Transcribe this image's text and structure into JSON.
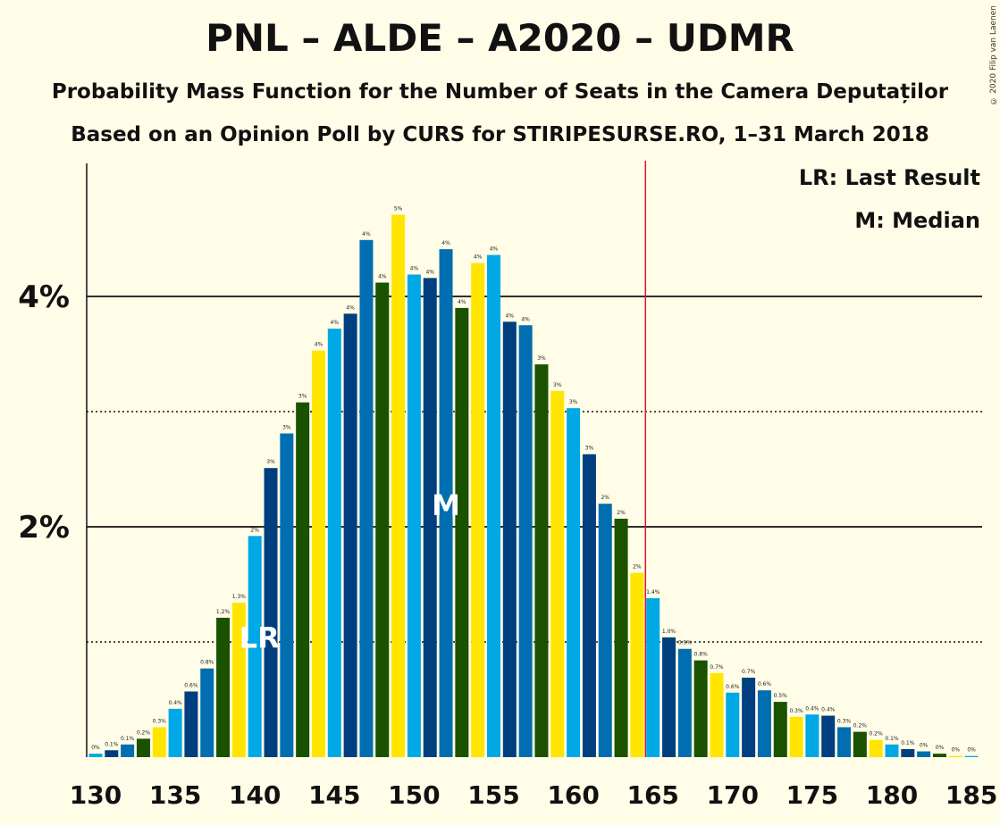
{
  "title": "PNL – ALDE – A2020 – UDMR",
  "subtitle_1": "Probability Mass Function for the Number of Seats in the Camera Deputaților",
  "subtitle_2": "Based on an Opinion Poll by CURS for STIRIPESURSE.RO, 1–31 March 2018",
  "copyright": "© 2020 Filip van Laenen",
  "legend": {
    "last_result": "LR: Last Result",
    "median": "M: Median"
  },
  "colors": {
    "background": "#FFFDE7",
    "bar_palette": [
      "#00A9E6",
      "#003F7F",
      "#006EB0",
      "#1A5200",
      "#FFE500"
    ],
    "last_result_line": "#E0112B"
  },
  "chart_data": {
    "type": "bar",
    "x": [
      130,
      131,
      132,
      133,
      134,
      135,
      136,
      137,
      138,
      139,
      140,
      141,
      142,
      143,
      144,
      145,
      146,
      147,
      148,
      149,
      150,
      151,
      152,
      153,
      154,
      155,
      156,
      157,
      158,
      159,
      160,
      161,
      162,
      163,
      164,
      165,
      166,
      167,
      168,
      169,
      170,
      171,
      172,
      173,
      174,
      175,
      176,
      177,
      178,
      179,
      180,
      181,
      182,
      183,
      184,
      185
    ],
    "values": [
      0.0003,
      0.0006,
      0.0011,
      0.0016,
      0.0026,
      0.0042,
      0.0057,
      0.0077,
      0.0121,
      0.0134,
      0.0192,
      0.0251,
      0.0281,
      0.0308,
      0.0353,
      0.0372,
      0.0385,
      0.0449,
      0.0412,
      0.0471,
      0.0419,
      0.0416,
      0.0441,
      0.039,
      0.0429,
      0.0436,
      0.0378,
      0.0375,
      0.0341,
      0.0318,
      0.0303,
      0.0263,
      0.022,
      0.0207,
      0.016,
      0.0138,
      0.0104,
      0.0094,
      0.0084,
      0.0073,
      0.0056,
      0.0069,
      0.0058,
      0.0048,
      0.0035,
      0.0037,
      0.0036,
      0.0026,
      0.0022,
      0.0015,
      0.0011,
      0.0007,
      0.0005,
      0.0003,
      0.0001,
      0.0001
    ],
    "data_labels": [
      "0%",
      "0.1%",
      "0.1%",
      "0.2%",
      "0.3%",
      "0.4%",
      "0.6%",
      "0.8%",
      "1.2%",
      "1.3%",
      "2%",
      "3%",
      "3%",
      "3%",
      "4%",
      "4%",
      "4%",
      "4%",
      "4%",
      "5%",
      "4%",
      "4%",
      "4%",
      "4%",
      "4%",
      "4%",
      "4%",
      "4%",
      "3%",
      "3%",
      "3%",
      "3%",
      "2%",
      "2%",
      "2%",
      "1.4%",
      "1.0%",
      "0.9%",
      "0.8%",
      "0.7%",
      "0.6%",
      "0.7%",
      "0.6%",
      "0.5%",
      "0.3%",
      "0.4%",
      "0.4%",
      "0.3%",
      "0.2%",
      "0.2%",
      "0.1%",
      "0.1%",
      "0%",
      "0%",
      "0%",
      "0%"
    ],
    "y_ticks": [
      {
        "value": 0.02,
        "label": "2%"
      },
      {
        "value": 0.04,
        "label": "4%"
      }
    ],
    "minor_gridlines": [
      0.01,
      0.03
    ],
    "x_ticks": [
      130,
      135,
      140,
      145,
      150,
      155,
      160,
      165,
      170,
      175,
      180,
      185
    ],
    "last_result": {
      "seat": 140,
      "label": "LR"
    },
    "median": {
      "seat": 152,
      "label": "M"
    },
    "majority_line_seat": 165,
    "ylim": [
      0,
      0.05
    ],
    "xlabel": "",
    "ylabel": ""
  }
}
